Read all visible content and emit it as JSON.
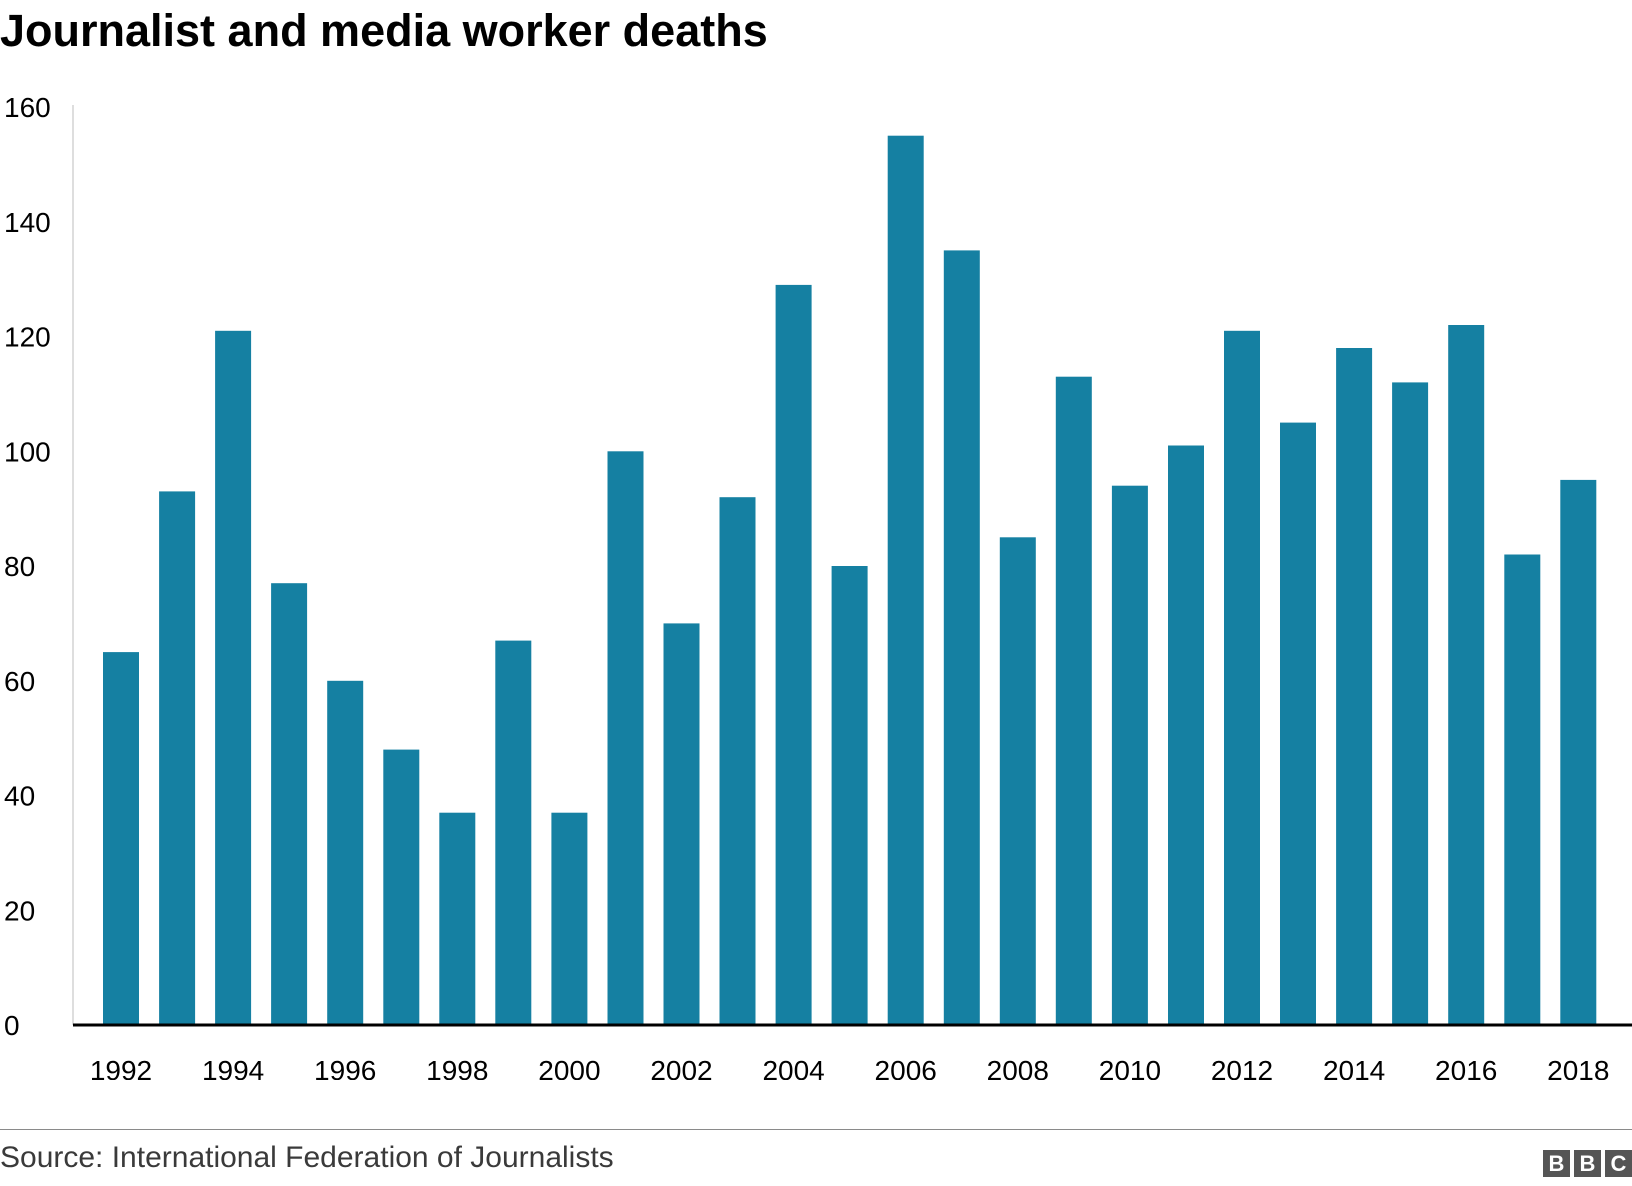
{
  "chart_data": {
    "type": "bar",
    "title": "Journalist and media worker deaths",
    "xlabel": "",
    "ylabel": "",
    "ylim": [
      0,
      160
    ],
    "yticks": [
      0,
      20,
      40,
      60,
      80,
      100,
      120,
      140,
      160
    ],
    "categories": [
      "1992",
      "1993",
      "1994",
      "1995",
      "1996",
      "1997",
      "1998",
      "1999",
      "2000",
      "2001",
      "2002",
      "2003",
      "2004",
      "2005",
      "2006",
      "2007",
      "2008",
      "2009",
      "2010",
      "2011",
      "2012",
      "2013",
      "2014",
      "2015",
      "2016",
      "2017",
      "2018"
    ],
    "xtick_labels": [
      "1992",
      "1994",
      "1996",
      "1998",
      "2000",
      "2002",
      "2004",
      "2006",
      "2008",
      "2010",
      "2012",
      "2014",
      "2016",
      "2018"
    ],
    "values": [
      65,
      93,
      121,
      77,
      60,
      48,
      37,
      67,
      37,
      100,
      70,
      92,
      129,
      80,
      155,
      135,
      85,
      113,
      94,
      101,
      121,
      105,
      118,
      112,
      122,
      82,
      95
    ],
    "bar_color": "#1580a2",
    "grid": false,
    "legend": "none"
  },
  "source": "Source: International Federation of Journalists",
  "logo": {
    "letters": [
      "B",
      "B",
      "C"
    ]
  }
}
